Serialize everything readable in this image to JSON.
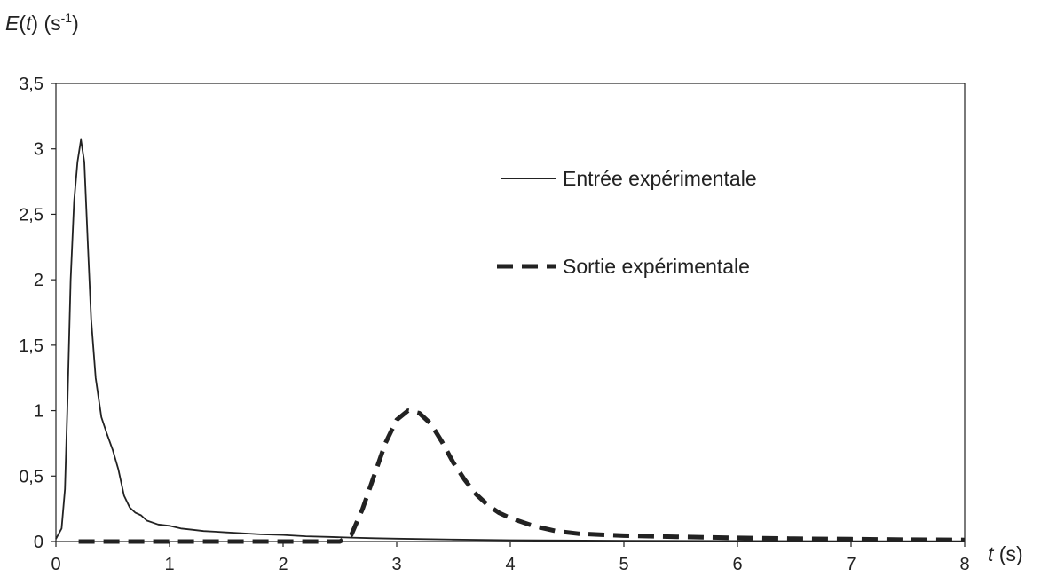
{
  "chart_data": {
    "type": "line",
    "ylabel": {
      "var": "E",
      "arg": "t",
      "unit_base": "(s",
      "unit_exp": "-1",
      "unit_close": ")"
    },
    "xlabel": {
      "var": "t",
      "unit": "(s)"
    },
    "xlim": [
      0,
      8
    ],
    "ylim": [
      0,
      3.5
    ],
    "x_ticks": [
      0,
      1,
      2,
      3,
      4,
      5,
      6,
      7,
      8
    ],
    "y_ticks": [
      0,
      0.5,
      1,
      1.5,
      2,
      2.5,
      3,
      3.5
    ],
    "x_tick_labels": [
      "0",
      "1",
      "2",
      "3",
      "4",
      "5",
      "6",
      "7",
      "8"
    ],
    "y_tick_labels": [
      "0",
      "0,5",
      "1",
      "1,5",
      "2",
      "2,5",
      "3",
      "3,5"
    ],
    "grid": false,
    "legend_position": "top-right",
    "series": [
      {
        "name": "Entrée expérimentale",
        "style": "solid",
        "color": "#222222",
        "points": [
          [
            0,
            0.02
          ],
          [
            0.05,
            0.1
          ],
          [
            0.08,
            0.4
          ],
          [
            0.1,
            1.0
          ],
          [
            0.13,
            2.0
          ],
          [
            0.16,
            2.6
          ],
          [
            0.19,
            2.9
          ],
          [
            0.22,
            3.07
          ],
          [
            0.25,
            2.9
          ],
          [
            0.28,
            2.3
          ],
          [
            0.31,
            1.7
          ],
          [
            0.35,
            1.25
          ],
          [
            0.4,
            0.95
          ],
          [
            0.45,
            0.82
          ],
          [
            0.5,
            0.7
          ],
          [
            0.55,
            0.55
          ],
          [
            0.6,
            0.35
          ],
          [
            0.65,
            0.26
          ],
          [
            0.7,
            0.22
          ],
          [
            0.75,
            0.2
          ],
          [
            0.8,
            0.16
          ],
          [
            0.9,
            0.13
          ],
          [
            1.0,
            0.12
          ],
          [
            1.1,
            0.1
          ],
          [
            1.2,
            0.09
          ],
          [
            1.3,
            0.08
          ],
          [
            1.4,
            0.075
          ],
          [
            1.5,
            0.07
          ],
          [
            1.6,
            0.065
          ],
          [
            1.8,
            0.055
          ],
          [
            2.0,
            0.05
          ],
          [
            2.2,
            0.04
          ],
          [
            2.4,
            0.035
          ],
          [
            2.6,
            0.03
          ],
          [
            2.8,
            0.025
          ],
          [
            3.0,
            0.022
          ],
          [
            3.5,
            0.015
          ],
          [
            4.0,
            0.01
          ],
          [
            5.0,
            0.006
          ],
          [
            6.0,
            0.004
          ],
          [
            7.0,
            0.003
          ],
          [
            8.0,
            0.002
          ]
        ]
      },
      {
        "name": "Sortie expérimentale",
        "style": "dashed",
        "color": "#222222",
        "points": [
          [
            0.2,
            0.0
          ],
          [
            1.0,
            0.0
          ],
          [
            2.0,
            0.0
          ],
          [
            2.5,
            0.0
          ],
          [
            2.6,
            0.05
          ],
          [
            2.7,
            0.25
          ],
          [
            2.8,
            0.5
          ],
          [
            2.9,
            0.75
          ],
          [
            3.0,
            0.93
          ],
          [
            3.1,
            1.0
          ],
          [
            3.2,
            0.98
          ],
          [
            3.3,
            0.9
          ],
          [
            3.4,
            0.76
          ],
          [
            3.5,
            0.6
          ],
          [
            3.6,
            0.47
          ],
          [
            3.7,
            0.36
          ],
          [
            3.8,
            0.28
          ],
          [
            3.9,
            0.22
          ],
          [
            4.0,
            0.18
          ],
          [
            4.2,
            0.12
          ],
          [
            4.4,
            0.08
          ],
          [
            4.6,
            0.06
          ],
          [
            5.0,
            0.045
          ],
          [
            5.5,
            0.035
          ],
          [
            6.0,
            0.028
          ],
          [
            6.5,
            0.022
          ],
          [
            7.0,
            0.018
          ],
          [
            7.5,
            0.014
          ],
          [
            8.0,
            0.012
          ]
        ]
      }
    ]
  }
}
